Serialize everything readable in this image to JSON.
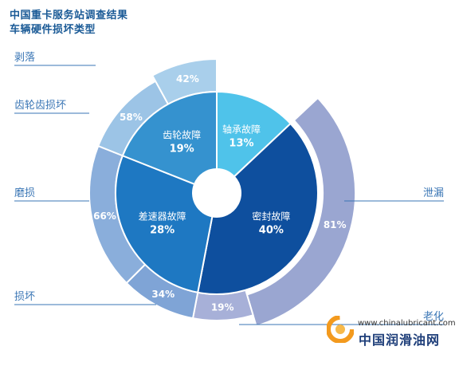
{
  "header": {
    "title": "中国重卡服务站调查结果",
    "subtitle": "车辆硬件损坏类型"
  },
  "watermark": {
    "url": "www.chinalubricant.com",
    "name": "中国润滑油网"
  },
  "chart_data": {
    "type": "pie",
    "style": "donut with outer sub-ring",
    "title": "中国重卡服务站调查结果",
    "subtitle": "车辆硬件损坏类型",
    "inner": [
      {
        "label": "轴承故障",
        "value": 13,
        "display": "13%",
        "color": "#4fc3ea"
      },
      {
        "label": "密封故障",
        "value": 40,
        "display": "40%",
        "color": "#0e4f9e"
      },
      {
        "label": "差速器故障",
        "value": 28,
        "display": "28%",
        "color": "#1e78c2"
      },
      {
        "label": "齿轮故障",
        "value": 19,
        "display": "19%",
        "color": "#3592cf"
      }
    ],
    "outer": [
      {
        "parent": "密封故障",
        "label": "泄漏",
        "value": 81,
        "display": "81%",
        "color": "#9aa6d1"
      },
      {
        "parent": "密封故障",
        "label": "老化",
        "value": 19,
        "display": "19%",
        "color": "#a7b0d8"
      },
      {
        "parent": "差速器故障",
        "label": "损坏",
        "value": 34,
        "display": "34%",
        "color": "#7fa4d6"
      },
      {
        "parent": "差速器故障",
        "label": "磨损",
        "value": 66,
        "display": "66%",
        "color": "#8aaedb"
      },
      {
        "parent": "齿轮故障",
        "label": "齿轮齿损坏",
        "value": 58,
        "display": "58%",
        "color": "#9cc4e6"
      },
      {
        "parent": "齿轮故障",
        "label": "剥落",
        "value": 42,
        "display": "42%",
        "color": "#a9cfeb"
      }
    ]
  }
}
